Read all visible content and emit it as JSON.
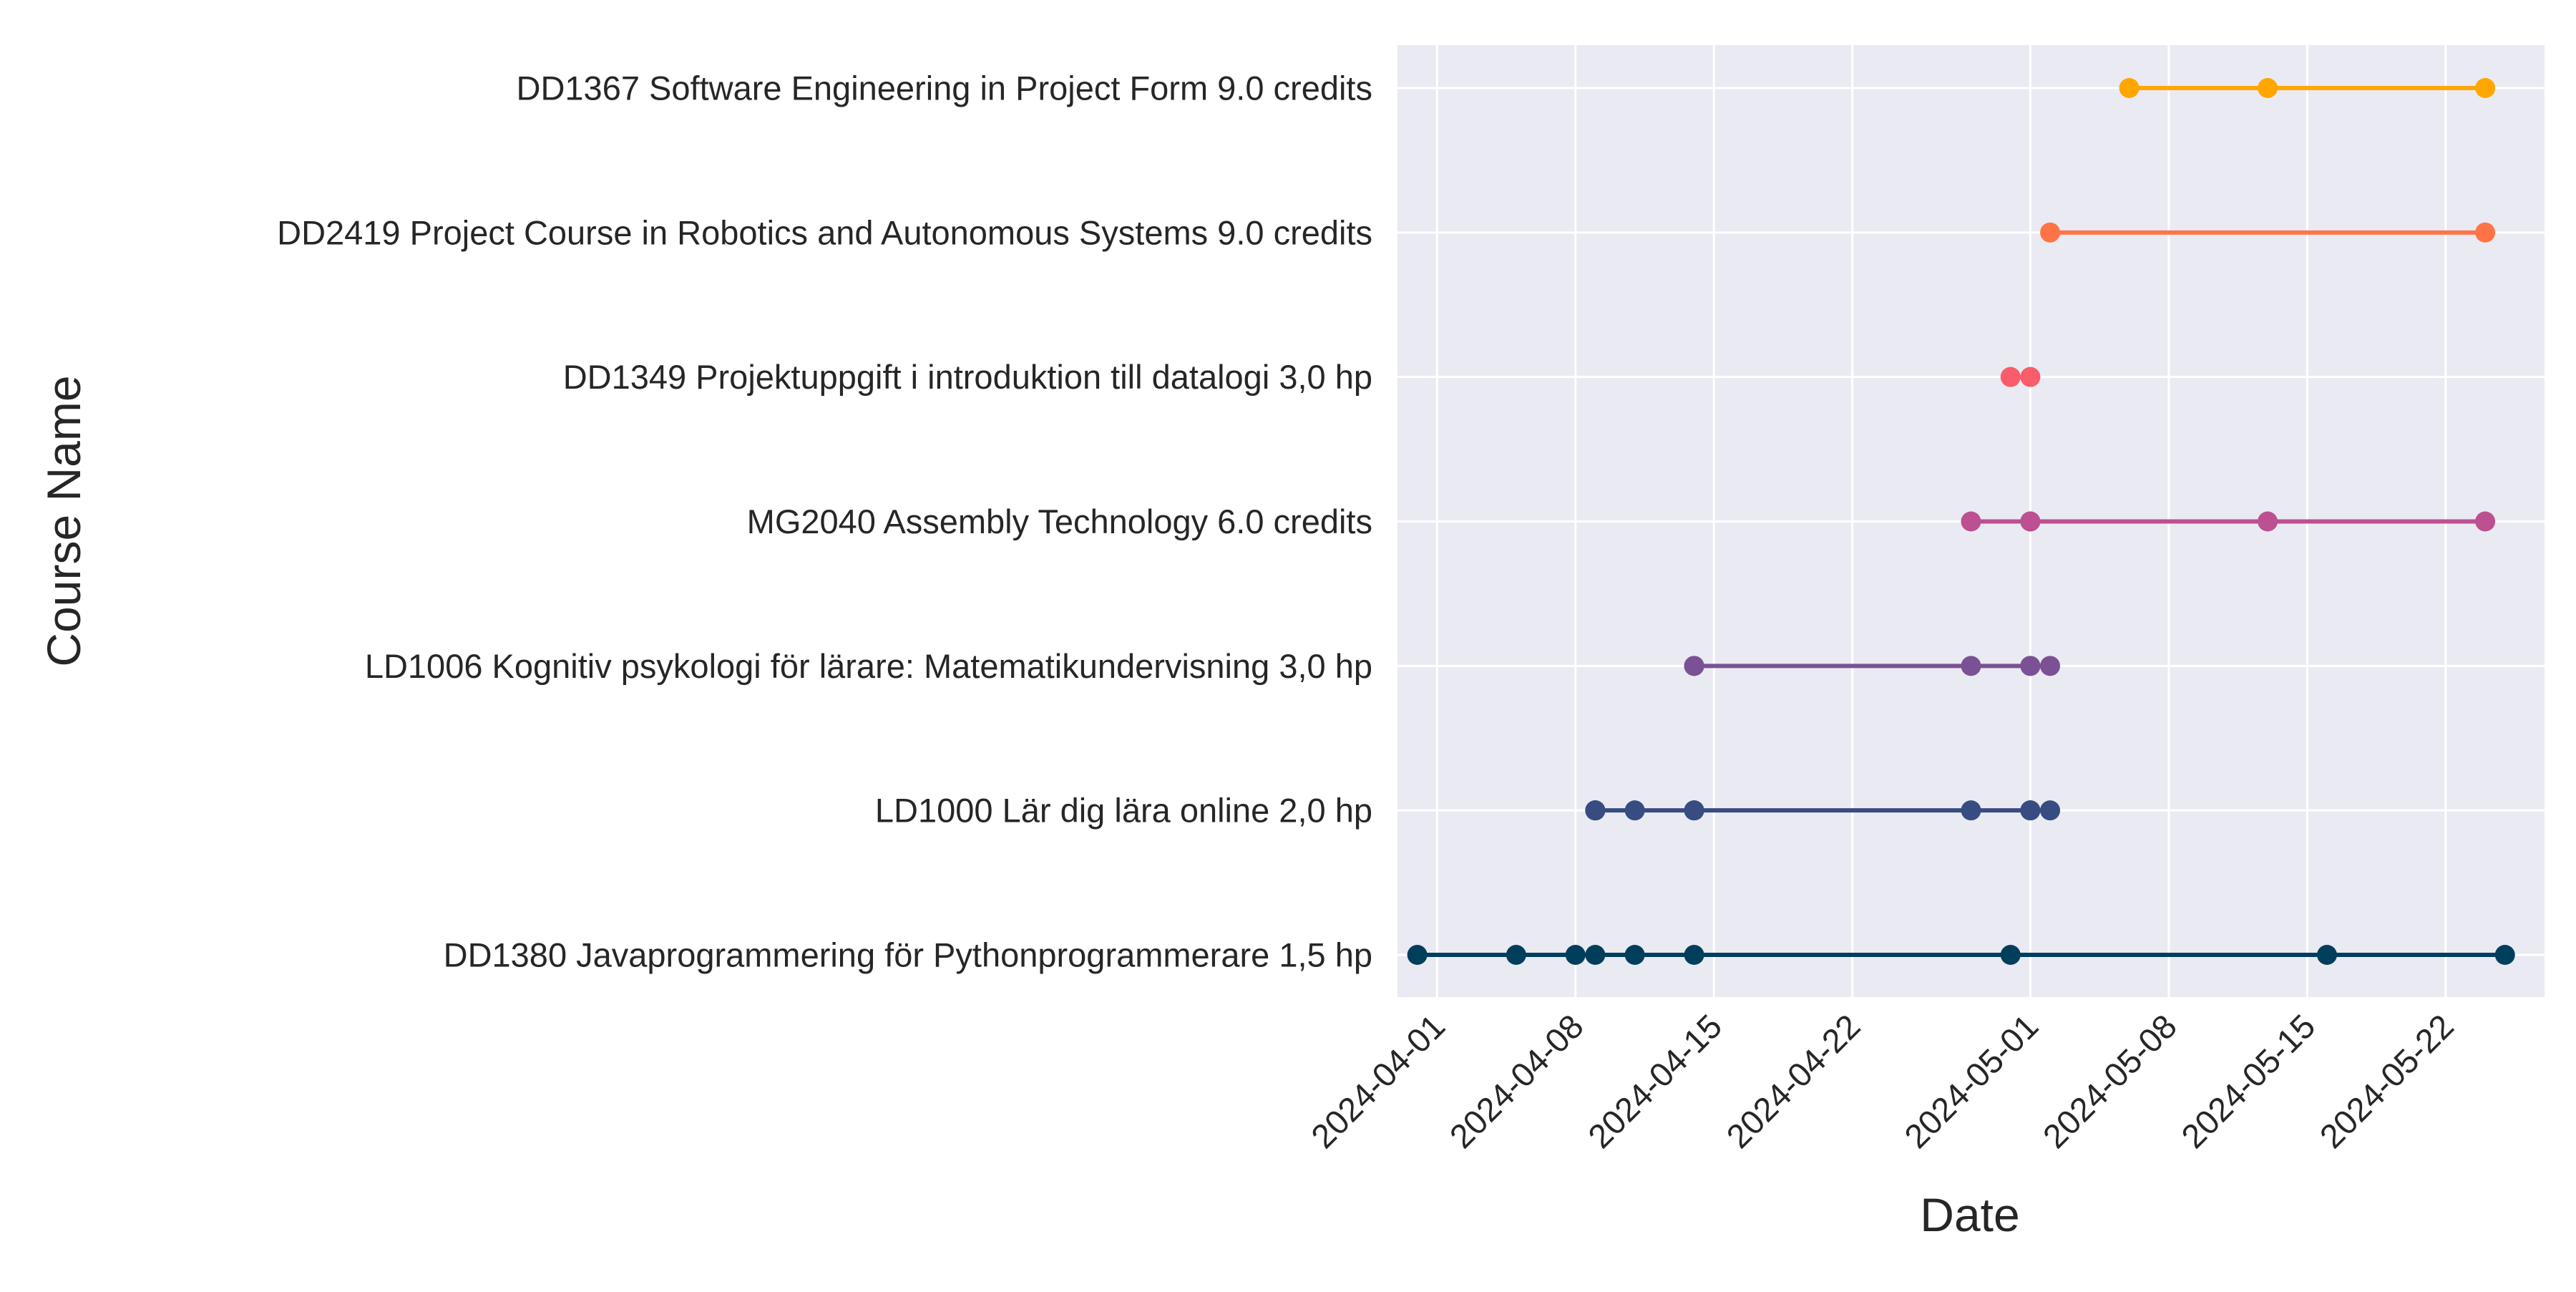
{
  "chart_data": {
    "type": "scatter",
    "xlabel": "Date",
    "ylabel": "Course Name",
    "grid": true,
    "x_tick_labels": [
      "2024-04-01",
      "2024-04-08",
      "2024-04-15",
      "2024-04-22",
      "2024-05-01",
      "2024-05-08",
      "2024-05-15",
      "2024-05-22"
    ],
    "xlim": [
      "2024-03-30",
      "2024-05-27"
    ],
    "categories": [
      "DD1367 Software Engineering in Project Form 9.0 credits",
      "DD2419 Project Course in Robotics and Autonomous Systems 9.0 credits",
      "DD1349 Projektuppgift i introduktion till datalogi 3,0 hp",
      "MG2040 Assembly Technology 6.0 credits",
      "LD1006 Kognitiv psykologi för lärare: Matematikundervisning 3,0 hp",
      "LD1000 Lär dig lära online 2,0 hp",
      "DD1380 Javaprogrammering för Pythonprogrammerare 1,5 hp"
    ],
    "series": [
      {
        "course": "DD1367 Software Engineering in Project Form 9.0 credits",
        "color": "#ffa600",
        "dates": [
          "2024-05-06",
          "2024-05-13",
          "2024-05-24"
        ]
      },
      {
        "course": "DD2419 Project Course in Robotics and Autonomous Systems 9.0 credits",
        "color": "#ff7446",
        "dates": [
          "2024-05-02",
          "2024-05-24"
        ]
      },
      {
        "course": "DD1349 Projektuppgift i introduktion till datalogi 3,0 hp",
        "color": "#f95d6a",
        "dates": [
          "2024-04-30",
          "2024-05-01"
        ]
      },
      {
        "course": "MG2040 Assembly Technology 6.0 credits",
        "color": "#bc5090",
        "dates": [
          "2024-04-28",
          "2024-05-01",
          "2024-05-01",
          "2024-05-13",
          "2024-05-24"
        ]
      },
      {
        "course": "LD1006 Kognitiv psykologi för lärare: Matematikundervisning 3,0 hp",
        "color": "#7a5195",
        "dates": [
          "2024-04-14",
          "2024-04-14",
          "2024-04-28",
          "2024-05-01",
          "2024-05-01",
          "2024-05-02"
        ]
      },
      {
        "course": "LD1000 Lär dig lära online 2,0 hp",
        "color": "#374c80",
        "dates": [
          "2024-04-09",
          "2024-04-09",
          "2024-04-09",
          "2024-04-11",
          "2024-04-14",
          "2024-04-14",
          "2024-04-28",
          "2024-05-01",
          "2024-05-01",
          "2024-05-02"
        ]
      },
      {
        "course": "DD1380 Javaprogrammering för Pythonprogrammerare 1,5 hp",
        "color": "#003f5c",
        "dates": [
          "2024-03-31",
          "2024-04-05",
          "2024-04-08",
          "2024-04-09",
          "2024-04-11",
          "2024-04-14",
          "2024-04-30",
          "2024-05-16",
          "2024-05-25"
        ]
      }
    ]
  }
}
